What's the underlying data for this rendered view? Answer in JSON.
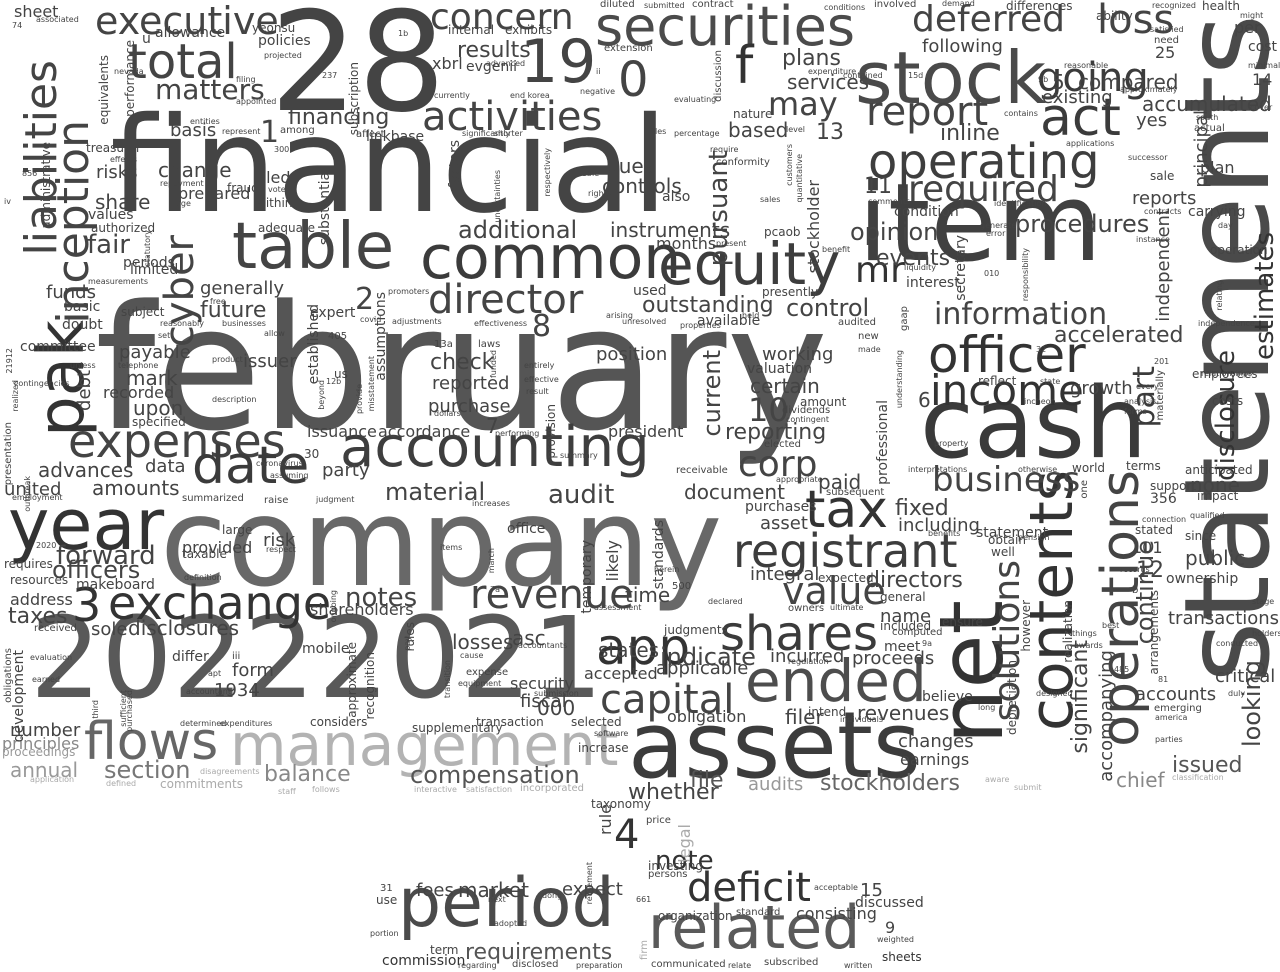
{
  "words": {
    "february": "february",
    "financial": "financial",
    "company": "company",
    "statements": "statements",
    "n28": "28",
    "n2022": "2022",
    "n2021": "2021",
    "item": "item",
    "cash": "cash",
    "assets": "assets",
    "management": "management",
    "net": "net",
    "stock": "stock",
    "period": "period",
    "related": "related",
    "securities": "securities",
    "accounting": "accounting",
    "year": "year",
    "table": "table",
    "common": "common",
    "equity": "equity",
    "exchange": "exchange",
    "expenses": "expenses",
    "contents": "contents",
    "operations": "operations",
    "officer": "officer",
    "income": "income",
    "operating": "operating",
    "registrant": "registrant",
    "liabilities": "liabilities",
    "inception": "inception",
    "pak": "pak",
    "executive": "executive",
    "total": "total",
    "concern": "concern",
    "activities": "activities",
    "deferred": "deferred",
    "loss": "loss",
    "act": "act",
    "going": "going",
    "report": "report",
    "required": "required",
    "tax": "tax",
    "date": "date",
    "director": "director",
    "ended": "ended",
    "shares": "shares",
    "value": "value",
    "revenue": "revenue",
    "app": "app",
    "capital": "capital",
    "flows": "flows",
    "deficit": "deficit",
    "solutions": "solutions",
    "business": "business",
    "information": "information",
    "disclosure": "disclosure",
    "estimates": "estimates",
    "part": "part",
    "cyber": "cyber",
    "n19": "19",
    "n0": "0",
    "f": "f",
    "mr": "mr",
    "may": "may",
    "corp": "corp",
    "n3": "3",
    "n4": "4",
    "n10": "10",
    "n1": "1",
    "n2": "2",
    "n8": "8",
    "note": "note",
    "notes": "notes",
    "audit": "audit",
    "matters": "matters",
    "forward": "forward",
    "continue": "continue",
    "looking": "looking",
    "significant": "significant",
    "accompanying": "accompanying",
    "pursuant": "pursuant",
    "procedures": "procedures",
    "accelerated": "accelerated",
    "accumulated": "accumulated",
    "outstanding": "outstanding",
    "control": "control",
    "opinion": "opinion",
    "directors": "directors",
    "fixed": "fixed",
    "including": "including",
    "compensation": "compensation",
    "stockholders": "stockholders",
    "section": "section",
    "balance": "balance",
    "annual": "annual",
    "principles": "principles",
    "chief": "chief",
    "issued": "issued",
    "audits": "audits",
    "whether": "whether",
    "file": "file",
    "market": "market",
    "requirements": "requirements",
    "results": "results",
    "fair": "fair",
    "additional": "additional",
    "instruments": "instruments",
    "current": "current",
    "reporting": "reporting",
    "material": "material",
    "amounts": "amounts",
    "advances": "advances",
    "officers": "officers",
    "taxes": "taxes",
    "disclosures": "disclosures",
    "indicate": "indicate",
    "applicable": "applicable",
    "form": "form",
    "states": "states",
    "losses": "losses",
    "asc": "asc",
    "time": "time",
    "future": "future",
    "generally": "generally",
    "change": "change",
    "share": "share",
    "financing": "financing",
    "basis": "basis",
    "controls": "controls",
    "due": "due",
    "plans": "plans",
    "services": "services",
    "compared": "compared",
    "based": "based",
    "inline": "inline",
    "events": "events",
    "following": "following",
    "existing": "existing",
    "yes": "yes",
    "reports": "reports",
    "principal": "principal",
    "independent": "independent",
    "growth": "growth",
    "public": "public",
    "transactions": "transactions",
    "critical": "critical",
    "accounts": "accounts",
    "none": "none",
    "working": "working",
    "certain": "certain",
    "valuation": "valuation",
    "paid": "paid",
    "document": "document",
    "purchases": "purchases",
    "asset": "asset",
    "integral": "integral",
    "incurred": "incurred",
    "proceeds": "proceeds",
    "revenues": "revenues",
    "filer": "filer",
    "changes": "changes",
    "earnings": "earnings",
    "name": "name",
    "believe": "believe",
    "fees": "fees",
    "expect": "expect",
    "consisting": "consisting",
    "discussed": "discussed",
    "commission": "commission",
    "sheets": "sheets",
    "check": "check",
    "purchase": "purchase",
    "reported": "reported",
    "accordance": "accordance",
    "position": "position",
    "president": "president",
    "issuance": "issuance",
    "issuer": "issuer",
    "party": "party",
    "data": "data",
    "upon": "upon",
    "debt": "debt",
    "payable": "payable",
    "mark": "mark",
    "recorded": "recorded",
    "united": "united",
    "address": "address",
    "sole": "sole",
    "shareholders": "shareholders",
    "number": "number",
    "development": "development",
    "fiscal": "fiscal",
    "security": "security",
    "accepted": "accepted",
    "obligation": "obligation",
    "funds": "funds",
    "committee": "committee",
    "sheet": "sheet",
    "risks": "risks",
    "allowance": "allowance",
    "policies": "policies",
    "prepared": "prepared",
    "filed": "filed",
    "provided": "provided",
    "risk": "risk",
    "makeboard": "makeboard",
    "differ": "differ",
    "n1934": "1934",
    "mobile": "mobile",
    "n000": "000",
    "n13": "13",
    "n11": "11",
    "n12": "12",
    "n5": "5",
    "n6": "6",
    "n7": "7",
    "n9": "9",
    "n15": "15",
    "n25": "25",
    "n101": "101",
    "n356": "356",
    "n14": "14",
    "stockholder": "stockholder",
    "secretary": "secretary",
    "months": "months",
    "factors": "factors",
    "xbrl": "xbrl",
    "evgenii": "evgenii",
    "internal": "internal",
    "exhibits": "exhibits",
    "subscription": "subscription",
    "approximate": "approximate",
    "legal": "legal",
    "rule": "rule",
    "taxonomy": "taxonomy",
    "organization": "organization",
    "recognition": "recognition",
    "assumptions": "assumptions",
    "plan": "plan",
    "sale": "sale",
    "support": "support",
    "ownership": "ownership",
    "carrying": "carrying",
    "employees": "employees",
    "costs": "costs",
    "health": "health",
    "ability": "ability",
    "per": "per",
    "cost": "cost",
    "fraud": "fraud",
    "doubt": "doubt",
    "basic": "basic",
    "subject": "subject",
    "payable2": "specified",
    "interest": "interest",
    "condition": "condition",
    "nature": "nature",
    "also": "also",
    "used": "used",
    "available": "available",
    "presently": "presently",
    "expert": "expert",
    "limited": "limited",
    "periods": "periods",
    "values": "values",
    "authorized": "authorized",
    "treasurer": "treasurer",
    "equivalents": "equivalents",
    "performance": "performance",
    "administrative": "administrative",
    "within": "within",
    "adequate": "adequate",
    "substantial": "substantial",
    "established": "established",
    "considers": "considers",
    "supplementary": "supplementary",
    "transaction": "transaction",
    "selected": "selected",
    "increase": "increase",
    "summary": "summary",
    "office": "office",
    "temporary": "temporary",
    "likely": "likely",
    "standards": "standards",
    "judgments": "judgments",
    "intend": "intend",
    "regulation": "regulation",
    "expected": "expected",
    "general": "general",
    "included": "included",
    "computed": "computed",
    "ensure": "ensure",
    "meet": "meet",
    "professional": "professional",
    "statement": "statement",
    "obtain": "obtain",
    "well": "well",
    "however": "however",
    "depreciation": "depreciation",
    "realization": "realization",
    "arrangements": "arrangements",
    "stated": "stated",
    "since": "since",
    "emerging": "emerging",
    "america": "america",
    "parties": "parties",
    "anticipated": "anticipated",
    "impact": "impact",
    "terms": "terms",
    "world": "world",
    "operation": "operation",
    "relationships": "relationships",
    "reflect": "reflect",
    "entirely": "entirely",
    "effective": "effective",
    "result": "result",
    "performing": "performing",
    "provision": "provision",
    "dollars": "dollars",
    "purchased": "purchased",
    "accountant": "accountant",
    "determined": "determined",
    "expenditures": "expenditures",
    "staff": "staff",
    "follows": "follows",
    "interactive": "interactive",
    "satisfaction": "satisfaction",
    "incorporated": "incorporated",
    "commitments": "commitments",
    "application": "application",
    "defined": "defined",
    "disagreements": "disagreements",
    "proceedings": "proceedings",
    "submit": "submit",
    "classification": "classification",
    "aware": "aware",
    "long": "long",
    "designed": "designed",
    "duly": "duly",
    "conducted": "conducted",
    "holders": "holders",
    "stage": "stage",
    "qualified": "qualified",
    "dividends": "dividends",
    "contingent": "contingent",
    "amount": "amount",
    "elected": "elected",
    "subsequent": "subsequent",
    "appropriate": "appropriate",
    "owners": "owners",
    "ultimate": "ultimate",
    "individuals": "individuals",
    "receivable": "receivable",
    "software": "software",
    "herein": "herein",
    "declared": "declared",
    "assessment": "assessment",
    "retirement": "retirement",
    "persons": "persons",
    "investing": "investing",
    "price": "price",
    "standard": "standard",
    "acceptable": "acceptable",
    "firm": "firm",
    "communicated": "communicated",
    "relate": "relate",
    "subscribed": "subscribed",
    "written": "written",
    "weighted": "weighted",
    "preparation": "preparation",
    "disclosed": "disclosed",
    "regarding": "regarding",
    "term": "term",
    "adopted": "adopted",
    "portion": "portion",
    "use": "use",
    "n31": "31",
    "next": "next",
    "dong": "dong",
    "n661": "661",
    "linkbase": "linkbase",
    "affect": "affect",
    "among": "among",
    "coronavirus": "coronavirus",
    "assuming": "assuming",
    "judgment": "judgment",
    "taxable": "taxable",
    "large": "large",
    "summarized": "summarized",
    "raise": "raise",
    "respect": "respect",
    "definition": "definition",
    "requires": "requires",
    "resources": "resources",
    "received": "received",
    "evaluation": "evaluation",
    "earned": "earned",
    "obligations": "obligations",
    "presentation": "presentation",
    "realized": "realized",
    "contingencies": "contingencies",
    "employment": "employment",
    "unless": "unless",
    "telephone": "telephone",
    "product": "product",
    "description": "description",
    "beyond": "beyond",
    "provide": "provide",
    "misstatement": "misstatement",
    "adjustments": "adjustments",
    "promoters": "promoters",
    "laws": "laws",
    "funded": "funded",
    "arising": "arising",
    "unresolved": "unresolved",
    "held": "held",
    "properties": "properties",
    "audited": "audited",
    "made": "made",
    "new": "new",
    "gaap": "gaap",
    "liquidity": "liquidity",
    "understanding": "understanding",
    "interpretations": "interpretations",
    "property": "property",
    "otherwise": "otherwise",
    "incheon": "incheon",
    "state": "state",
    "every": "every",
    "analysis": "analysis",
    "forms": "forms",
    "independence": "independence",
    "relating": "relating",
    "materially": "materially",
    "responsibility": "responsibility",
    "recognized": "recognized",
    "satisfied": "satisfied",
    "might": "might",
    "demand": "demand",
    "involved": "involved",
    "differences": "differences",
    "contract": "contract",
    "submitted": "submitted",
    "diluted": "diluted",
    "conditions": "conditions",
    "yeonsu": "yeonsu",
    "associated": "associated",
    "reasonable": "reasonable",
    "south": "south",
    "actual": "actual",
    "cover": "cover",
    "minimal": "minimal",
    "need": "need",
    "contained": "contained",
    "applications": "applications",
    "contains": "contains",
    "successor": "successor",
    "contracts": "contracts",
    "instance": "instance",
    "day": "day",
    "u": "u",
    "advanced": "advanced",
    "end korea": "end korea",
    "extension": "extension",
    "discussion": "discussion",
    "evaluating": "evaluating",
    "negative": "negative",
    "currently": "currently",
    "files": "files",
    "percentage": "percentage",
    "require": "require",
    "conformity": "conformity",
    "customers": "customers",
    "quantitative": "quantitative",
    "comments": "comments",
    "identification": "identification",
    "generate": "generate",
    "error": "error",
    "benefit": "benefit",
    "pcaob": "pcaob",
    "present": "present",
    "rights": "rights",
    "able": "able",
    "sales": "sales",
    "uncertainties": "uncertainties",
    "respectively": "respectively",
    "significantly": "significantly",
    "shorter": "shorter",
    "filing": "filing",
    "appointed": "appointed",
    "represent": "represent",
    "entities": "entities",
    "effects": "effects",
    "repayment": "repayment",
    "age": "age",
    "statutory": "statutory",
    "free": "free",
    "businesses": "businesses",
    "measurements": "measurements",
    "reasonably": "reasonably",
    "set": "set",
    "allow": "allow",
    "covid": "covid",
    "pension": "pension",
    "benefits": "benefits",
    "best": "best",
    "records": "records",
    "things": "things",
    "awards": "awards",
    "connection": "connection",
    "iii": "iii",
    "apt": "apt",
    "third": "third",
    "sufficient": "sufficient",
    "pay": "pay",
    "rules": "rules",
    "items": "items",
    "march": "march",
    "cause": "cause",
    "accountants": "accountants",
    "submission": "submission",
    "n405": "405",
    "us": "us",
    "n30": "30",
    "n2020": "2020",
    "n13a": "13a",
    "n12b": "12b",
    "n500": "500",
    "n15d": "15d",
    "n9a": "9a",
    "n485": "485",
    "n81": "81",
    "n201": "201",
    "n32": "32",
    "n010": "010",
    "n237": "237",
    "n300": "300",
    "n856": "856",
    "n74": "74",
    "n21912": "21912",
    "one": "one",
    "b": "b",
    "k": "k",
    "ii": "ii",
    "iv": "iv",
    "n1b": "1b",
    "n9b": "9b",
    "expense": "expense",
    "transition": "transition",
    "equipment": "equipment",
    "increases": "increases",
    "ongoing": "ongoing",
    "vote": "vote",
    "projected": "projected",
    "expenditure": "expenditure",
    "approximately": "approximately",
    "n7a": "7a",
    "nevada": "nevada",
    "effectiveness": "effectiveness",
    "outbreak": "outbreak",
    "level": "level"
  }
}
